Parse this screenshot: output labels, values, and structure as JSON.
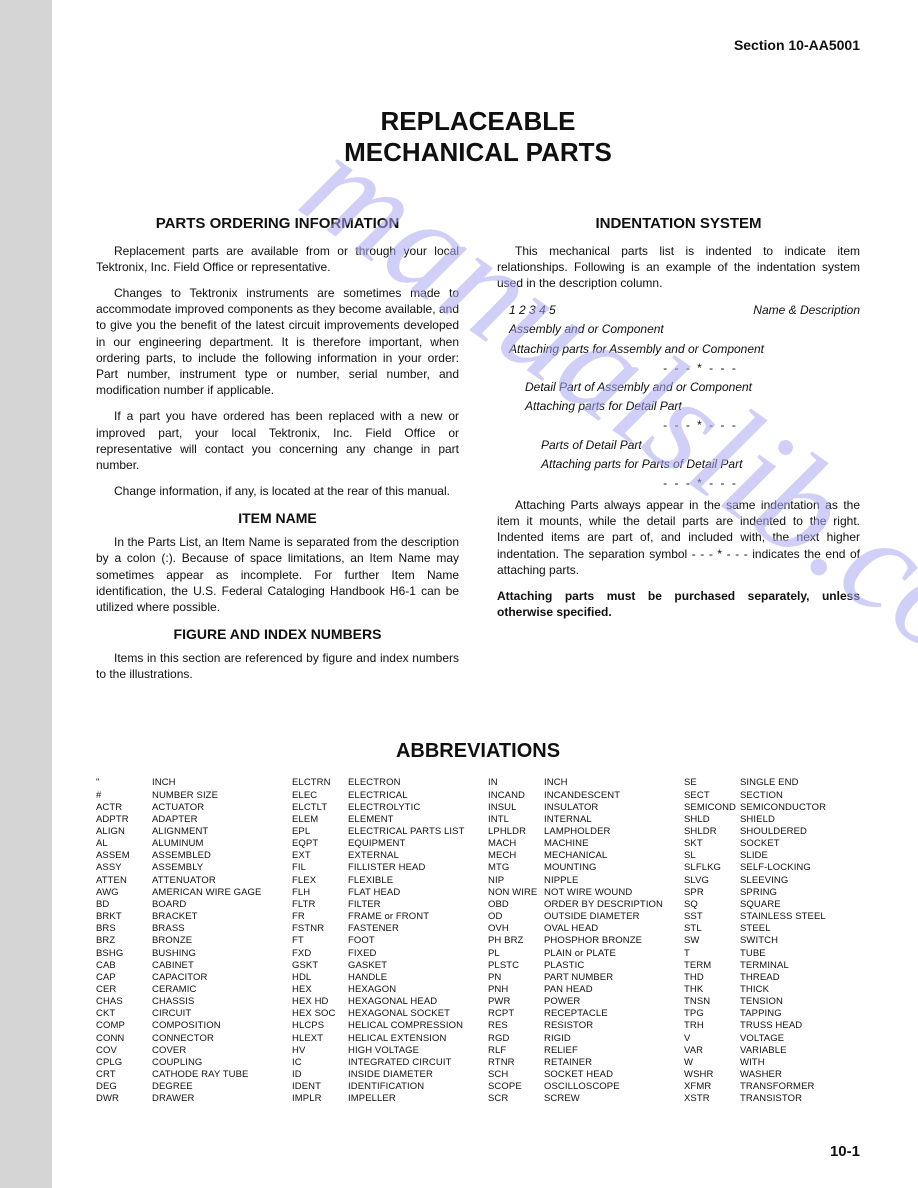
{
  "header": "Section 10-AA5001",
  "title_line1": "REPLACEABLE",
  "title_line2": "MECHANICAL PARTS",
  "page_number": "10-1",
  "watermark": "manualslib.com",
  "left": {
    "h_order": "PARTS ORDERING INFORMATION",
    "p1": "Replacement parts are available from or through your local Tektronix, Inc. Field Office or representative.",
    "p2": "Changes to Tektronix instruments are sometimes made to accommodate improved components as they become available, and to give you the benefit of the latest circuit improvements developed in our engineering department. It is therefore important, when ordering parts, to include the following information in your order: Part number, instrument type or number, serial number, and modification number if applicable.",
    "p3": "If a part you have ordered has been replaced with a new or improved part, your local Tektronix, Inc. Field Office or representative will contact you concerning any change in part number.",
    "p4": "Change information, if any, is located at the rear of this manual.",
    "h_item": "ITEM NAME",
    "p5": "In the Parts List, an Item Name is separated from the description by a colon (:). Because of space limitations, an Item Name may sometimes appear as incomplete. For further Item Name identification, the U.S. Federal Cataloging Handbook H6-1 can be utilized where possible.",
    "h_fig": "FIGURE AND INDEX NUMBERS",
    "p6": "Items in this section are referenced by figure and index numbers to the illustrations."
  },
  "right": {
    "h_indent": "INDENTATION SYSTEM",
    "p1": "This mechanical parts list is indented to indicate item relationships. Following is an example of the indentation system used in the description column.",
    "ex_nums": "1  2  3  4  5",
    "ex_name": "Name & Description",
    "ex_l1a": "Assembly and or Component",
    "ex_l1b": "Attaching parts for Assembly and or Component",
    "sep": "- - - * - - -",
    "ex_l2a": "Detail Part of Assembly and or Component",
    "ex_l2b": "Attaching parts for Detail Part",
    "ex_l3a": "Parts of Detail Part",
    "ex_l3b": "Attaching parts for Parts of Detail Part",
    "p2a": "Attaching Parts always appear in the same indentation as the item it mounts, while the detail parts are indented to the right. Indented items are part of, and included with, the next higher indentation. The separation symbol - - - * - - - indicates the end of attaching parts.",
    "p2b": "Attaching parts must be purchased separately, unless otherwise specified."
  },
  "abbr_title": "ABBREVIATIONS",
  "abbr_cols": [
    [
      [
        "\"",
        "INCH"
      ],
      [
        "#",
        "NUMBER SIZE"
      ],
      [
        "ACTR",
        "ACTUATOR"
      ],
      [
        "ADPTR",
        "ADAPTER"
      ],
      [
        "ALIGN",
        "ALIGNMENT"
      ],
      [
        "AL",
        "ALUMINUM"
      ],
      [
        "ASSEM",
        "ASSEMBLED"
      ],
      [
        "ASSY",
        "ASSEMBLY"
      ],
      [
        "ATTEN",
        "ATTENUATOR"
      ],
      [
        "AWG",
        "AMERICAN WIRE GAGE"
      ],
      [
        "BD",
        "BOARD"
      ],
      [
        "BRKT",
        "BRACKET"
      ],
      [
        "BRS",
        "BRASS"
      ],
      [
        "BRZ",
        "BRONZE"
      ],
      [
        "BSHG",
        "BUSHING"
      ],
      [
        "CAB",
        "CABINET"
      ],
      [
        "CAP",
        "CAPACITOR"
      ],
      [
        "CER",
        "CERAMIC"
      ],
      [
        "CHAS",
        "CHASSIS"
      ],
      [
        "CKT",
        "CIRCUIT"
      ],
      [
        "COMP",
        "COMPOSITION"
      ],
      [
        "CONN",
        "CONNECTOR"
      ],
      [
        "COV",
        "COVER"
      ],
      [
        "CPLG",
        "COUPLING"
      ],
      [
        "CRT",
        "CATHODE RAY TUBE"
      ],
      [
        "DEG",
        "DEGREE"
      ],
      [
        "DWR",
        "DRAWER"
      ]
    ],
    [
      [
        "ELCTRN",
        "ELECTRON"
      ],
      [
        "ELEC",
        "ELECTRICAL"
      ],
      [
        "ELCTLT",
        "ELECTROLYTIC"
      ],
      [
        "ELEM",
        "ELEMENT"
      ],
      [
        "EPL",
        "ELECTRICAL PARTS LIST"
      ],
      [
        "EQPT",
        "EQUIPMENT"
      ],
      [
        "EXT",
        "EXTERNAL"
      ],
      [
        "FIL",
        "FILLISTER HEAD"
      ],
      [
        "FLEX",
        "FLEXIBLE"
      ],
      [
        "FLH",
        "FLAT HEAD"
      ],
      [
        "FLTR",
        "FILTER"
      ],
      [
        "FR",
        "FRAME or FRONT"
      ],
      [
        "FSTNR",
        "FASTENER"
      ],
      [
        "FT",
        "FOOT"
      ],
      [
        "FXD",
        "FIXED"
      ],
      [
        "GSKT",
        "GASKET"
      ],
      [
        "HDL",
        "HANDLE"
      ],
      [
        "HEX",
        "HEXAGON"
      ],
      [
        "HEX HD",
        "HEXAGONAL HEAD"
      ],
      [
        "HEX SOC",
        "HEXAGONAL SOCKET"
      ],
      [
        "HLCPS",
        "HELICAL COMPRESSION"
      ],
      [
        "HLEXT",
        "HELICAL EXTENSION"
      ],
      [
        "HV",
        "HIGH VOLTAGE"
      ],
      [
        "IC",
        "INTEGRATED CIRCUIT"
      ],
      [
        "ID",
        "INSIDE DIAMETER"
      ],
      [
        "IDENT",
        "IDENTIFICATION"
      ],
      [
        "IMPLR",
        "IMPELLER"
      ]
    ],
    [
      [
        "IN",
        "INCH"
      ],
      [
        "INCAND",
        "INCANDESCENT"
      ],
      [
        "INSUL",
        "INSULATOR"
      ],
      [
        "INTL",
        "INTERNAL"
      ],
      [
        "LPHLDR",
        "LAMPHOLDER"
      ],
      [
        "MACH",
        "MACHINE"
      ],
      [
        "MECH",
        "MECHANICAL"
      ],
      [
        "MTG",
        "MOUNTING"
      ],
      [
        "NIP",
        "NIPPLE"
      ],
      [
        "NON WIRE",
        "NOT WIRE WOUND"
      ],
      [
        "OBD",
        "ORDER BY DESCRIPTION"
      ],
      [
        "OD",
        "OUTSIDE DIAMETER"
      ],
      [
        "OVH",
        "OVAL HEAD"
      ],
      [
        "PH BRZ",
        "PHOSPHOR BRONZE"
      ],
      [
        "PL",
        "PLAIN or PLATE"
      ],
      [
        "PLSTC",
        "PLASTIC"
      ],
      [
        "PN",
        "PART NUMBER"
      ],
      [
        "PNH",
        "PAN HEAD"
      ],
      [
        "PWR",
        "POWER"
      ],
      [
        "RCPT",
        "RECEPTACLE"
      ],
      [
        "RES",
        "RESISTOR"
      ],
      [
        "RGD",
        "RIGID"
      ],
      [
        "RLF",
        "RELIEF"
      ],
      [
        "RTNR",
        "RETAINER"
      ],
      [
        "SCH",
        "SOCKET HEAD"
      ],
      [
        "SCOPE",
        "OSCILLOSCOPE"
      ],
      [
        "SCR",
        "SCREW"
      ]
    ],
    [
      [
        "SE",
        "SINGLE END"
      ],
      [
        "SECT",
        "SECTION"
      ],
      [
        "SEMICOND",
        "SEMICONDUCTOR"
      ],
      [
        "SHLD",
        "SHIELD"
      ],
      [
        "SHLDR",
        "SHOULDERED"
      ],
      [
        "SKT",
        "SOCKET"
      ],
      [
        "SL",
        "SLIDE"
      ],
      [
        "SLFLKG",
        "SELF-LOCKING"
      ],
      [
        "SLVG",
        "SLEEVING"
      ],
      [
        "SPR",
        "SPRING"
      ],
      [
        "SQ",
        "SQUARE"
      ],
      [
        "SST",
        "STAINLESS STEEL"
      ],
      [
        "STL",
        "STEEL"
      ],
      [
        "SW",
        "SWITCH"
      ],
      [
        "T",
        "TUBE"
      ],
      [
        "TERM",
        "TERMINAL"
      ],
      [
        "THD",
        "THREAD"
      ],
      [
        "THK",
        "THICK"
      ],
      [
        "TNSN",
        "TENSION"
      ],
      [
        "TPG",
        "TAPPING"
      ],
      [
        "TRH",
        "TRUSS HEAD"
      ],
      [
        "V",
        "VOLTAGE"
      ],
      [
        "VAR",
        "VARIABLE"
      ],
      [
        "W",
        "WITH"
      ],
      [
        "WSHR",
        "WASHER"
      ],
      [
        "XFMR",
        "TRANSFORMER"
      ],
      [
        "XSTR",
        "TRANSISTOR"
      ]
    ]
  ]
}
